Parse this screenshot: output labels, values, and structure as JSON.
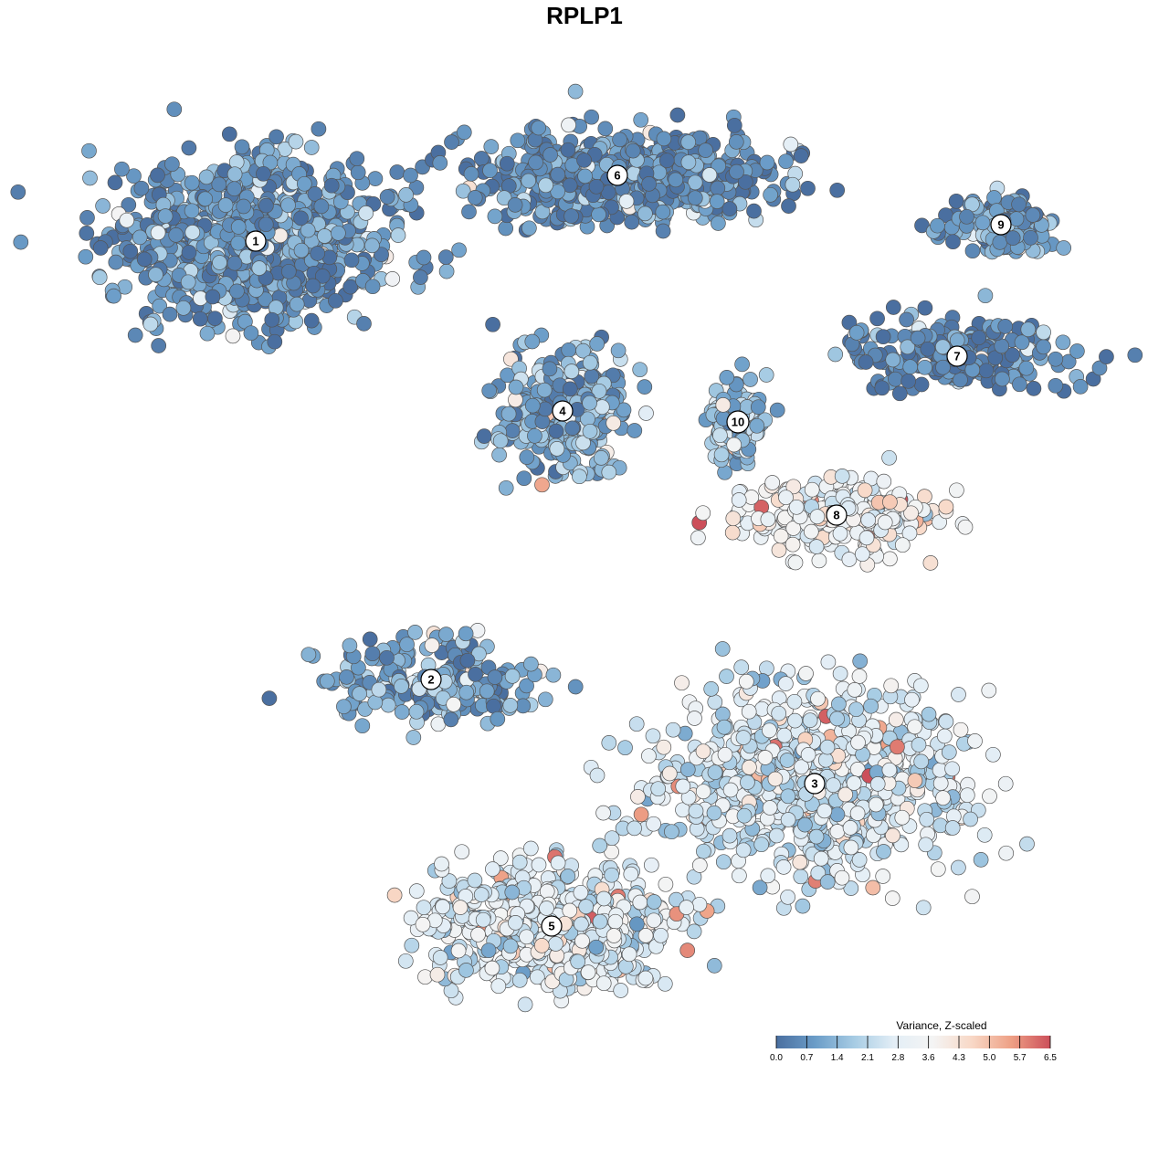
{
  "chart_data": {
    "type": "scatter",
    "title": "RPLP1",
    "xlabel": "",
    "ylabel": "",
    "grid": false,
    "color_scale": {
      "title": "Variance, Z-scaled",
      "min": 0.0,
      "max": 6.5,
      "ticks": [
        "0.0",
        "0.7",
        "1.4",
        "2.1",
        "2.8",
        "3.6",
        "4.3",
        "5.0",
        "5.7",
        "6.5"
      ],
      "colors": [
        "#4a6fa0",
        "#6b9dc8",
        "#a7cce4",
        "#e3eef6",
        "#f4f4f4",
        "#f8d8c6",
        "#eea085",
        "#cc4f5a"
      ],
      "placement": "bottom-right"
    },
    "clusters": [
      {
        "label": "1",
        "x": -6.0,
        "y": 6.6,
        "mean_expression": 0.7,
        "spread_x": 2.6,
        "spread_y": 1.6,
        "n": 900
      },
      {
        "label": "6",
        "x": 0.6,
        "y": 7.8,
        "mean_expression": 0.6,
        "spread_x": 3.0,
        "spread_y": 0.9,
        "n": 650
      },
      {
        "label": "4",
        "x": -0.4,
        "y": 3.5,
        "mean_expression": 1.2,
        "spread_x": 1.2,
        "spread_y": 1.1,
        "n": 380
      },
      {
        "label": "10",
        "x": 2.8,
        "y": 3.3,
        "mean_expression": 1.6,
        "spread_x": 0.6,
        "spread_y": 0.8,
        "n": 120
      },
      {
        "label": "9",
        "x": 7.6,
        "y": 6.9,
        "mean_expression": 0.9,
        "spread_x": 1.1,
        "spread_y": 0.6,
        "n": 140
      },
      {
        "label": "7",
        "x": 6.8,
        "y": 4.5,
        "mean_expression": 0.5,
        "spread_x": 2.3,
        "spread_y": 0.7,
        "n": 280
      },
      {
        "label": "8",
        "x": 4.6,
        "y": 1.6,
        "mean_expression": 3.3,
        "spread_x": 2.1,
        "spread_y": 0.8,
        "n": 260
      },
      {
        "label": "2",
        "x": -2.8,
        "y": -1.4,
        "mean_expression": 1.0,
        "spread_x": 2.1,
        "spread_y": 0.8,
        "n": 230
      },
      {
        "label": "3",
        "x": 4.2,
        "y": -3.3,
        "mean_expression": 2.6,
        "spread_x": 3.0,
        "spread_y": 1.8,
        "n": 800
      },
      {
        "label": "5",
        "x": -0.6,
        "y": -5.9,
        "mean_expression": 2.8,
        "spread_x": 2.4,
        "spread_y": 1.2,
        "n": 700
      }
    ]
  }
}
